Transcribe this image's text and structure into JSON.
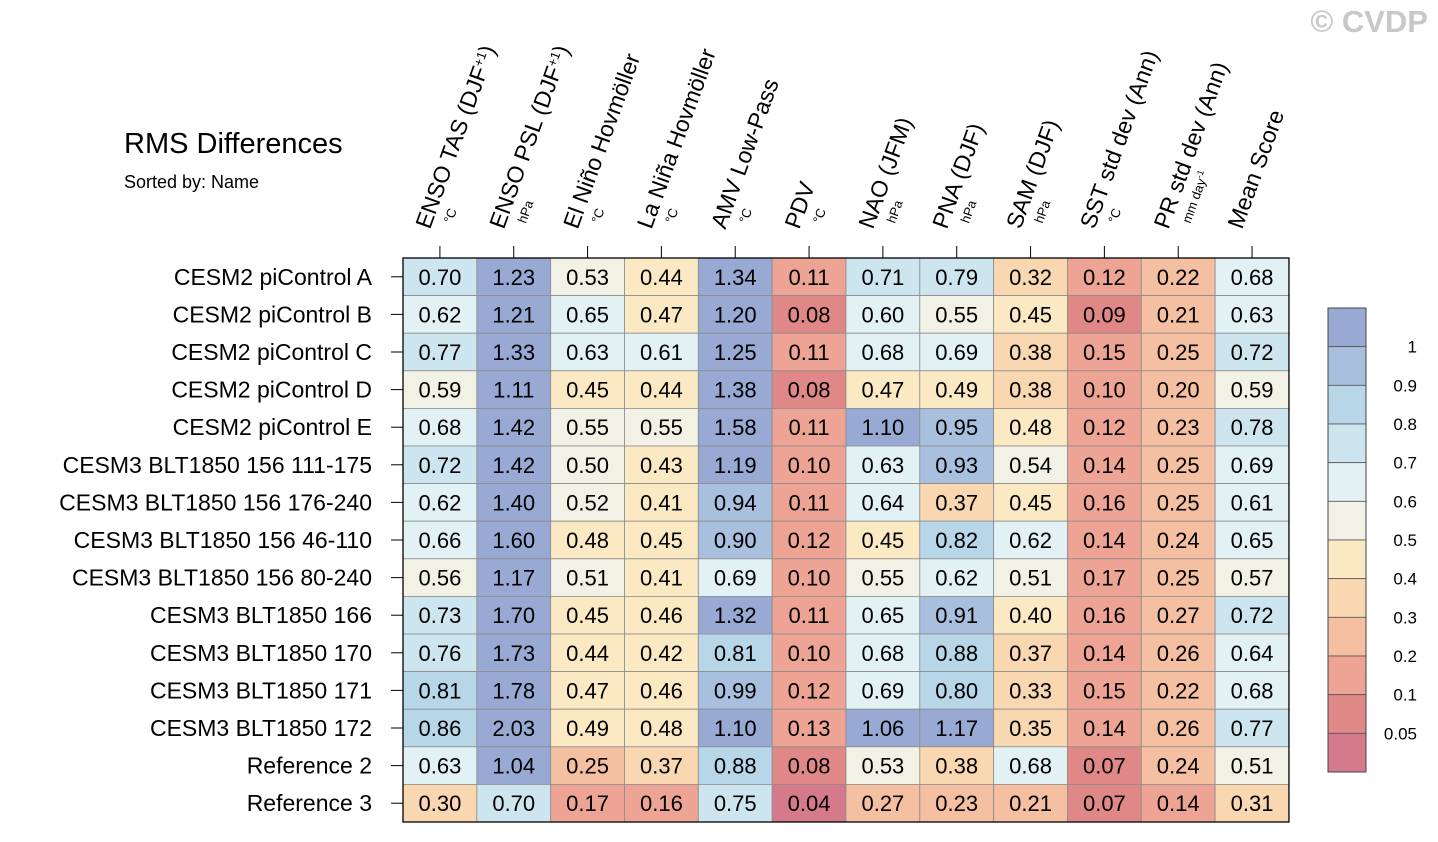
{
  "header": {
    "title": "RMS Differences",
    "subtitle": "Sorted by: Name",
    "copyright": "© CVDP"
  },
  "chart_data": {
    "type": "heatmap",
    "title": "RMS Differences",
    "subtitle": "Sorted by: Name",
    "columns": [
      {
        "label": "ENSO TAS (DJF",
        "sup": "+1",
        "close": ")",
        "unit": "°C"
      },
      {
        "label": "ENSO PSL (DJF",
        "sup": "+1",
        "close": ")",
        "unit": "hPa"
      },
      {
        "label": "El Niño Hovmöller",
        "sup": "",
        "close": "",
        "unit": "°C"
      },
      {
        "label": "La Niña Hovmöller",
        "sup": "",
        "close": "",
        "unit": "°C"
      },
      {
        "label": "AMV Low-Pass",
        "sup": "",
        "close": "",
        "unit": "°C"
      },
      {
        "label": "PDV",
        "sup": "",
        "close": "",
        "unit": "°C"
      },
      {
        "label": "NAO (JFM)",
        "sup": "",
        "close": "",
        "unit": "hPa"
      },
      {
        "label": "PNA (DJF)",
        "sup": "",
        "close": "",
        "unit": "hPa"
      },
      {
        "label": "SAM (DJF)",
        "sup": "",
        "close": "",
        "unit": "hPa"
      },
      {
        "label": "SST std dev (Ann)",
        "sup": "",
        "close": "",
        "unit": "°C"
      },
      {
        "label": "PR std dev (Ann)",
        "sup": "",
        "close": "",
        "unit": "mm day-1"
      },
      {
        "label": "Mean Score",
        "sup": "",
        "close": "",
        "unit": ""
      }
    ],
    "rows": [
      "CESM2 piControl A",
      "CESM2 piControl B",
      "CESM2 piControl C",
      "CESM2 piControl D",
      "CESM2 piControl E",
      "CESM3 BLT1850 156 111-175",
      "CESM3 BLT1850 156 176-240",
      "CESM3 BLT1850 156 46-110",
      "CESM3 BLT1850 156 80-240",
      "CESM3 BLT1850 166",
      "CESM3 BLT1850 170",
      "CESM3 BLT1850 171",
      "CESM3 BLT1850 172",
      "Reference 2",
      "Reference 3"
    ],
    "values": [
      [
        "0.70",
        "1.23",
        "0.53",
        "0.44",
        "1.34",
        "0.11",
        "0.71",
        "0.79",
        "0.32",
        "0.12",
        "0.22",
        "0.68"
      ],
      [
        "0.62",
        "1.21",
        "0.65",
        "0.47",
        "1.20",
        "0.08",
        "0.60",
        "0.55",
        "0.45",
        "0.09",
        "0.21",
        "0.63"
      ],
      [
        "0.77",
        "1.33",
        "0.63",
        "0.61",
        "1.25",
        "0.11",
        "0.68",
        "0.69",
        "0.38",
        "0.15",
        "0.25",
        "0.72"
      ],
      [
        "0.59",
        "1.11",
        "0.45",
        "0.44",
        "1.38",
        "0.08",
        "0.47",
        "0.49",
        "0.38",
        "0.10",
        "0.20",
        "0.59"
      ],
      [
        "0.68",
        "1.42",
        "0.55",
        "0.55",
        "1.58",
        "0.11",
        "1.10",
        "0.95",
        "0.48",
        "0.12",
        "0.23",
        "0.78"
      ],
      [
        "0.72",
        "1.42",
        "0.50",
        "0.43",
        "1.19",
        "0.10",
        "0.63",
        "0.93",
        "0.54",
        "0.14",
        "0.25",
        "0.69"
      ],
      [
        "0.62",
        "1.40",
        "0.52",
        "0.41",
        "0.94",
        "0.11",
        "0.64",
        "0.37",
        "0.45",
        "0.16",
        "0.25",
        "0.61"
      ],
      [
        "0.66",
        "1.60",
        "0.48",
        "0.45",
        "0.90",
        "0.12",
        "0.45",
        "0.82",
        "0.62",
        "0.14",
        "0.24",
        "0.65"
      ],
      [
        "0.56",
        "1.17",
        "0.51",
        "0.41",
        "0.69",
        "0.10",
        "0.55",
        "0.62",
        "0.51",
        "0.17",
        "0.25",
        "0.57"
      ],
      [
        "0.73",
        "1.70",
        "0.45",
        "0.46",
        "1.32",
        "0.11",
        "0.65",
        "0.91",
        "0.40",
        "0.16",
        "0.27",
        "0.72"
      ],
      [
        "0.76",
        "1.73",
        "0.44",
        "0.42",
        "0.81",
        "0.10",
        "0.68",
        "0.88",
        "0.37",
        "0.14",
        "0.26",
        "0.64"
      ],
      [
        "0.81",
        "1.78",
        "0.47",
        "0.46",
        "0.99",
        "0.12",
        "0.69",
        "0.80",
        "0.33",
        "0.15",
        "0.22",
        "0.68"
      ],
      [
        "0.86",
        "2.03",
        "0.49",
        "0.48",
        "1.10",
        "0.13",
        "1.06",
        "1.17",
        "0.35",
        "0.14",
        "0.26",
        "0.77"
      ],
      [
        "0.63",
        "1.04",
        "0.25",
        "0.37",
        "0.88",
        "0.08",
        "0.53",
        "0.38",
        "0.68",
        "0.07",
        "0.24",
        "0.51"
      ],
      [
        "0.30",
        "0.70",
        "0.17",
        "0.16",
        "0.75",
        "0.04",
        "0.27",
        "0.23",
        "0.21",
        "0.07",
        "0.14",
        "0.31"
      ]
    ],
    "colorbar": {
      "levels": [
        0.05,
        0.1,
        0.2,
        0.3,
        0.4,
        0.5,
        0.6,
        0.7,
        0.8,
        0.9,
        1
      ],
      "labels": [
        "0.05",
        "0.1",
        "0.2",
        "0.3",
        "0.4",
        "0.5",
        "0.6",
        "0.7",
        "0.8",
        "0.9",
        "1"
      ],
      "colors": [
        "#d47a8b",
        "#e08888",
        "#eda494",
        "#f5bfa1",
        "#f8d7b1",
        "#fbe9c3",
        "#f2f1e5",
        "#e2f1f4",
        "#cce5ef",
        "#b7d6e8",
        "#a8bfdd",
        "#98a9d3"
      ]
    }
  }
}
